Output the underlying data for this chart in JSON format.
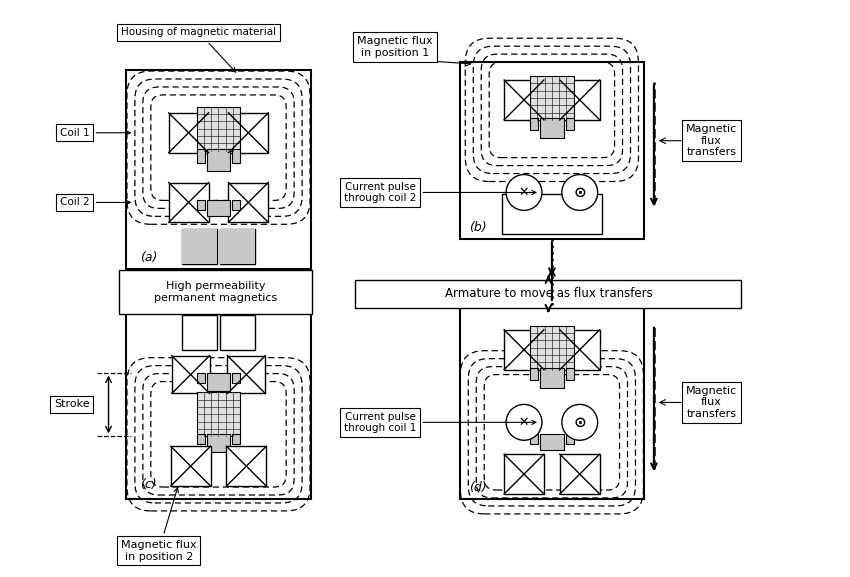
{
  "bg_color": "#ffffff",
  "lc": "#000000",
  "fig_width": 8.5,
  "fig_height": 5.77,
  "labels": {
    "housing": "Housing of magnetic material",
    "coil1": "Coil 1",
    "coil2": "Coil 2",
    "panel_a": "(a)",
    "panel_b": "(b)",
    "panel_c": "(c)",
    "panel_d": "(d)",
    "high_perm": "High permeability\npermanent magnetics",
    "mag_flux_1": "Magnetic flux\nin position 1",
    "mag_flux_2": "Magnetic flux\nin position 2",
    "current_coil2": "Current pulse\nthrough coil 2",
    "current_coil1": "Current pulse\nthrough coil 1",
    "mag_transfers": "Magnetic\nflux\ntransfers",
    "armature": "Armature to move as flux transfers",
    "stroke": "Stroke"
  }
}
